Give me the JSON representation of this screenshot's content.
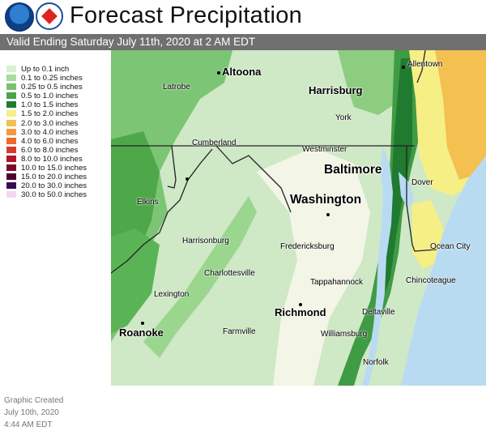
{
  "header": {
    "title": "Forecast Precipitation",
    "subtitle": "Valid Ending Saturday July 11th, 2020 at 2 AM EDT",
    "logos": [
      "noaa-logo",
      "nws-logo"
    ]
  },
  "legend": [
    {
      "label": "Up to 0.1 inch",
      "color": "#d8f0d0"
    },
    {
      "label": "0.1 to 0.25 inches",
      "color": "#a6dd98"
    },
    {
      "label": "0.25 to 0.5 inches",
      "color": "#75c36c"
    },
    {
      "label": "0.5 to 1.0 inches",
      "color": "#48a548"
    },
    {
      "label": "1.0 to 1.5 inches",
      "color": "#207a2f"
    },
    {
      "label": "1.5 to 2.0 inches",
      "color": "#f6ef86"
    },
    {
      "label": "2.0 to 3.0 inches",
      "color": "#f4c04f"
    },
    {
      "label": "3.0 to 4.0 inches",
      "color": "#f39840"
    },
    {
      "label": "4.0 to 6.0 inches",
      "color": "#ed6a2f"
    },
    {
      "label": "6.0 to 8.0 inches",
      "color": "#d83a2b"
    },
    {
      "label": "8.0 to 10.0 inches",
      "color": "#b11628"
    },
    {
      "label": "10.0 to 15.0 inches",
      "color": "#82092c"
    },
    {
      "label": "15.0 to 20.0 inches",
      "color": "#500433"
    },
    {
      "label": "20.0 to 30.0 inches",
      "color": "#3b0a55"
    },
    {
      "label": "30.0 to 50.0 inches",
      "color": "#f3d8f3"
    }
  ],
  "credit": {
    "line1": "Graphic Created",
    "line2": "July 10th, 2020",
    "line3": "4:44 AM EDT"
  },
  "cities": {
    "allentown": "Allentown",
    "altoona": "Altoona",
    "harrisburg": "Harrisburg",
    "latrobe": "Latrobe",
    "york": "York",
    "cumberland": "Cumberland",
    "westminster": "Westminster",
    "baltimore": "Baltimore",
    "dover": "Dover",
    "elkins": "Elkins",
    "washington": "Washington",
    "harrisonburg": "Harrisonburg",
    "fredericksburg": "Fredericksburg",
    "ocean_city": "Ocean City",
    "charlottesville": "Charlottesville",
    "tappahannock": "Tappahannock",
    "chincoteague": "Chincoteague",
    "lexington": "Lexington",
    "richmond": "Richmond",
    "deltaville": "Deltaville",
    "roanoke": "Roanoke",
    "farmville": "Farmville",
    "williamsburg": "Williamsburg",
    "norfolk": "Norfolk"
  }
}
